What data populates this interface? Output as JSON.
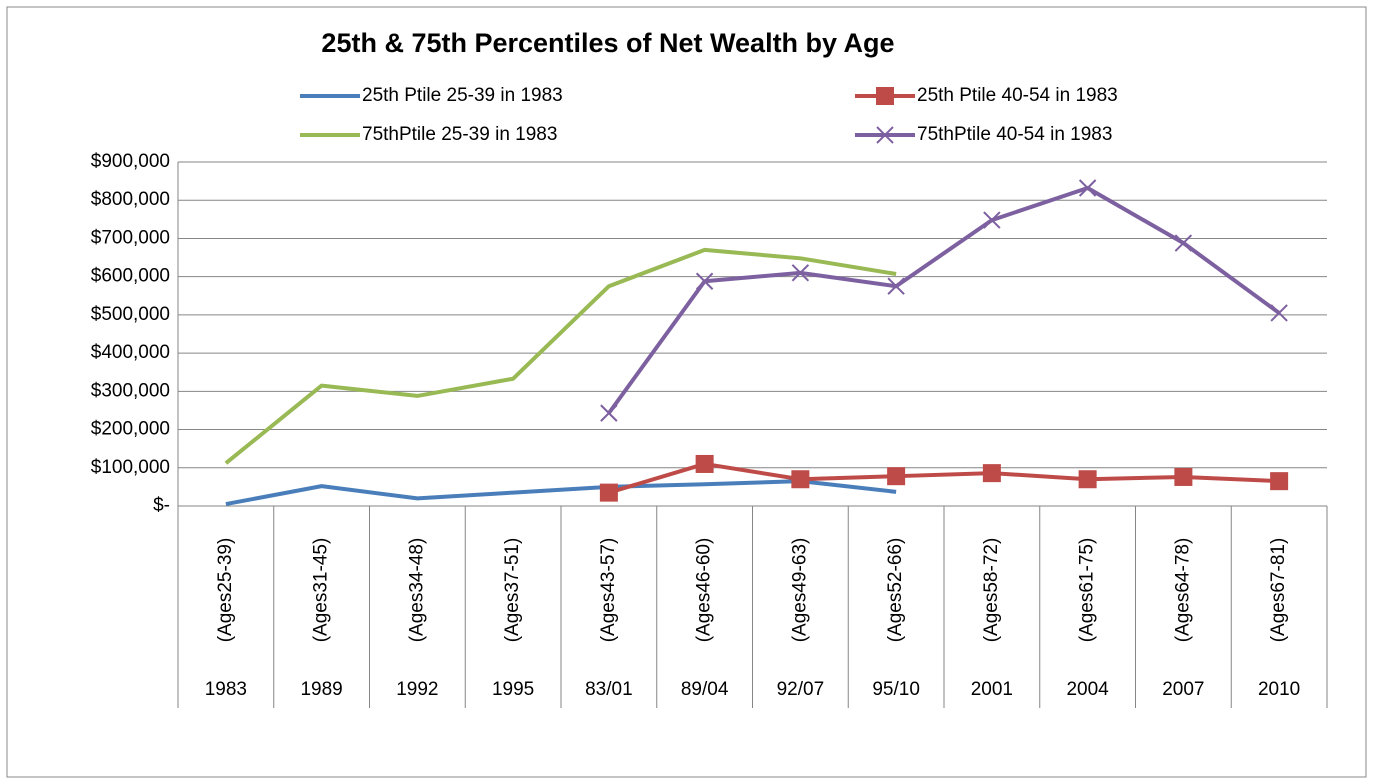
{
  "chart_data": {
    "type": "line",
    "title": "25th & 75th Percentiles of Net Wealth by Age",
    "categories": [
      [
        "(Ages25-39)",
        "1983"
      ],
      [
        "(Ages31-45)",
        "1989"
      ],
      [
        "(Ages34-48)",
        "1992"
      ],
      [
        "(Ages37-51)",
        "1995"
      ],
      [
        "(Ages43-57)",
        "83/01"
      ],
      [
        "(Ages46-60)",
        "89/04"
      ],
      [
        "(Ages49-63)",
        "92/07"
      ],
      [
        "(Ages52-66)",
        "95/10"
      ],
      [
        "(Ages58-72)",
        "2001"
      ],
      [
        "(Ages61-75)",
        "2004"
      ],
      [
        "(Ages64-78)",
        "2007"
      ],
      [
        "(Ages67-81)",
        "2010"
      ]
    ],
    "series": [
      {
        "name": "25th Ptile 25-39 in 1983",
        "color": "#4a7ebb",
        "marker": "none",
        "values": [
          5000,
          52000,
          20000,
          35000,
          50000,
          57000,
          65000,
          37000,
          null,
          null,
          null,
          null
        ]
      },
      {
        "name": "25th Ptile 40-54 in 1983",
        "color": "#be4b48",
        "marker": "square",
        "values": [
          null,
          null,
          null,
          null,
          35000,
          110000,
          70000,
          78000,
          86000,
          70000,
          76000,
          65000
        ]
      },
      {
        "name": "75thPtile 25-39 in 1983",
        "color": "#98b954",
        "marker": "none",
        "values": [
          112000,
          315000,
          288000,
          333000,
          575000,
          670000,
          648000,
          607000,
          null,
          null,
          null,
          null
        ]
      },
      {
        "name": "75thPtile 40-54 in 1983",
        "color": "#7d60a0",
        "marker": "x",
        "values": [
          null,
          null,
          null,
          null,
          243000,
          588000,
          610000,
          575000,
          748000,
          832000,
          688000,
          505000
        ]
      }
    ],
    "ylim": [
      0,
      900000
    ],
    "yticks": [
      {
        "value": 0,
        "label": "$-"
      },
      {
        "value": 100000,
        "label": "$100,000"
      },
      {
        "value": 200000,
        "label": "$200,000"
      },
      {
        "value": 300000,
        "label": "$300,000"
      },
      {
        "value": 400000,
        "label": "$400,000"
      },
      {
        "value": 500000,
        "label": "$500,000"
      },
      {
        "value": 600000,
        "label": "$600,000"
      },
      {
        "value": 700000,
        "label": "$700,000"
      },
      {
        "value": 800000,
        "label": "$800,000"
      },
      {
        "value": 900000,
        "label": "$900,000"
      }
    ],
    "grid": true
  }
}
